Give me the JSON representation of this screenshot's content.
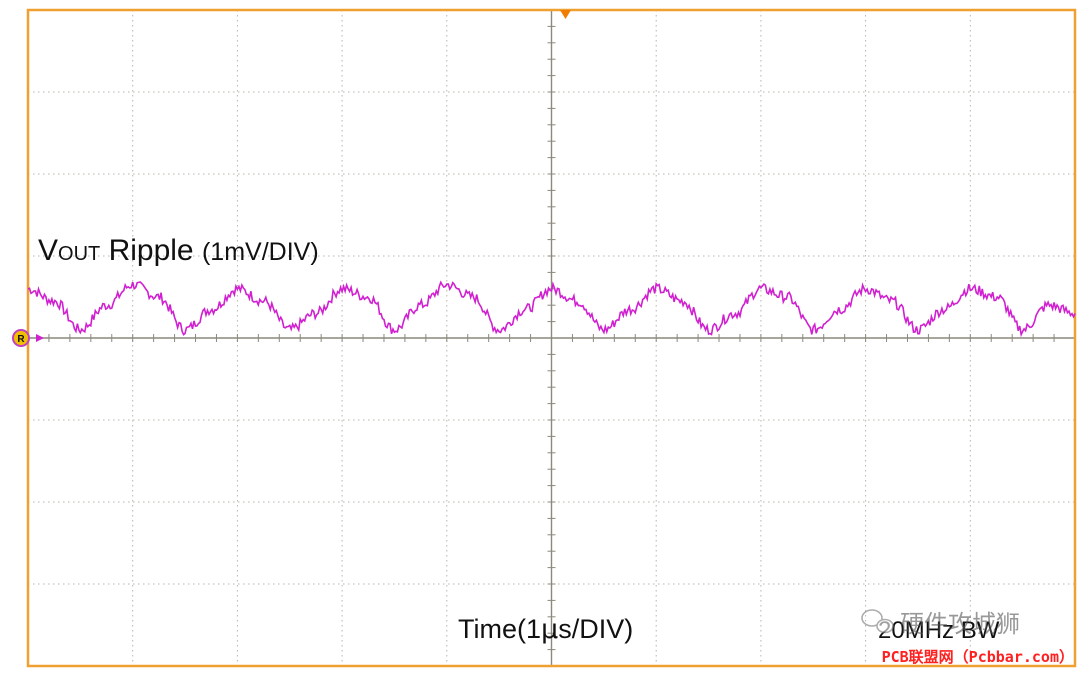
{
  "chart_data": {
    "type": "line",
    "title": "",
    "trace_label": {
      "main": "V",
      "sub": "OUT",
      "rest": " Ripple",
      "scale": "(1mV/DIV)"
    },
    "xlabel": {
      "prefix": "Time(1",
      "mu": "µ",
      "suffix": "s/DIV)"
    },
    "bandwidth_label": "20MHz BW",
    "xlim": [
      0,
      10
    ],
    "ylim": [
      -4,
      4
    ],
    "x_unit": "µs",
    "y_unit": "mV",
    "grid": true,
    "ripple_period_us": 1,
    "series": [
      {
        "name": "",
        "color": "#d020d0",
        "x": [
          0,
          0.25,
          0.5,
          0.75,
          1.0,
          1.25,
          1.5,
          1.75,
          2.0,
          2.25,
          2.5,
          2.75,
          3.0,
          3.25,
          3.5,
          3.75,
          4.0,
          4.25,
          4.5,
          4.75,
          5.0,
          5.25,
          5.5,
          5.75,
          6.0,
          6.25,
          6.5,
          6.75,
          7.0,
          7.25,
          7.5,
          7.75,
          8.0,
          8.25,
          8.5,
          8.75,
          9.0,
          9.25,
          9.5,
          9.75,
          10.0
        ],
        "y": [
          0.6,
          0.45,
          0.1,
          0.4,
          0.65,
          0.5,
          0.1,
          0.35,
          0.6,
          0.45,
          0.1,
          0.3,
          0.6,
          0.5,
          0.1,
          0.4,
          0.65,
          0.5,
          0.1,
          0.35,
          0.6,
          0.45,
          0.1,
          0.35,
          0.6,
          0.45,
          0.1,
          0.3,
          0.6,
          0.5,
          0.1,
          0.35,
          0.6,
          0.45,
          0.1,
          0.35,
          0.6,
          0.5,
          0.1,
          0.4,
          0.3
        ]
      }
    ]
  },
  "markers": {
    "channel": "R",
    "trigger_color": "#f07c00",
    "frame_color": "#f0a030",
    "grid_color": "#b8b4a8",
    "axis_color": "#8c887c"
  },
  "watermark": {
    "text": "硬件攻城狮"
  },
  "footer": "PCB联盟网（Pcbbar.com）"
}
